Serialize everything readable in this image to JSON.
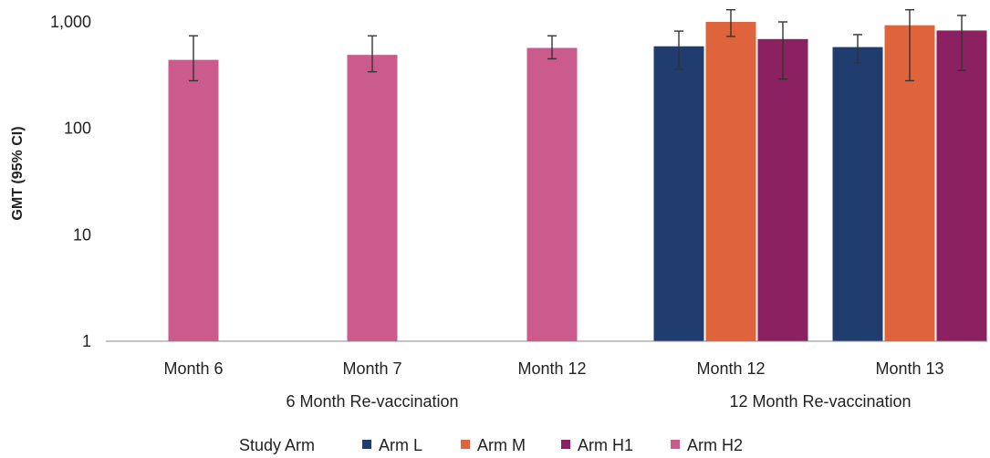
{
  "chart_data": {
    "type": "bar",
    "ylabel": "GMT (95% CI)",
    "yscale": "log",
    "ylim": [
      1,
      1000
    ],
    "yticks": [
      {
        "value": 1,
        "label": "1"
      },
      {
        "value": 10,
        "label": "10"
      },
      {
        "value": 100,
        "label": "100"
      },
      {
        "value": 1000,
        "label": "1,000"
      }
    ],
    "groups": [
      {
        "label": "6 Month Re-vaccination",
        "categories": [
          "Month 6",
          "Month 7",
          "Month 12"
        ]
      },
      {
        "label": "12 Month Re-vaccination",
        "categories": [
          "Month 12",
          "Month 13"
        ]
      }
    ],
    "categories": [
      {
        "label": "Month 6",
        "group": 0,
        "series": [
          "Arm H2"
        ]
      },
      {
        "label": "Month 7",
        "group": 0,
        "series": [
          "Arm H2"
        ]
      },
      {
        "label": "Month 12",
        "group": 0,
        "series": [
          "Arm H2"
        ]
      },
      {
        "label": "Month 12",
        "group": 1,
        "series": [
          "Arm L",
          "Arm M",
          "Arm H1"
        ]
      },
      {
        "label": "Month 13",
        "group": 1,
        "series": [
          "Arm L",
          "Arm M",
          "Arm H1"
        ]
      }
    ],
    "series": [
      {
        "name": "Arm L",
        "color": "#213c6e",
        "values": [
          null,
          null,
          null,
          590,
          580
        ],
        "ci_low": [
          null,
          null,
          null,
          360,
          410
        ],
        "ci_high": [
          null,
          null,
          null,
          820,
          760
        ]
      },
      {
        "name": "Arm M",
        "color": "#e0643b",
        "values": [
          null,
          null,
          null,
          1000,
          930
        ],
        "ci_low": [
          null,
          null,
          null,
          730,
          280
        ],
        "ci_high": [
          null,
          null,
          null,
          1300,
          1300
        ]
      },
      {
        "name": "Arm H1",
        "color": "#8b2160",
        "values": [
          null,
          null,
          null,
          690,
          830
        ],
        "ci_low": [
          null,
          null,
          null,
          290,
          350
        ],
        "ci_high": [
          null,
          null,
          null,
          1000,
          1150
        ]
      },
      {
        "name": "Arm H2",
        "color": "#cc5b8d",
        "values": [
          440,
          490,
          570,
          null,
          null
        ],
        "ci_low": [
          280,
          340,
          450,
          null,
          null
        ],
        "ci_high": [
          740,
          740,
          740,
          null,
          null
        ]
      }
    ],
    "legend": {
      "title": "Study Arm",
      "placement": "bottom"
    },
    "grid": false,
    "error_bars": true
  }
}
